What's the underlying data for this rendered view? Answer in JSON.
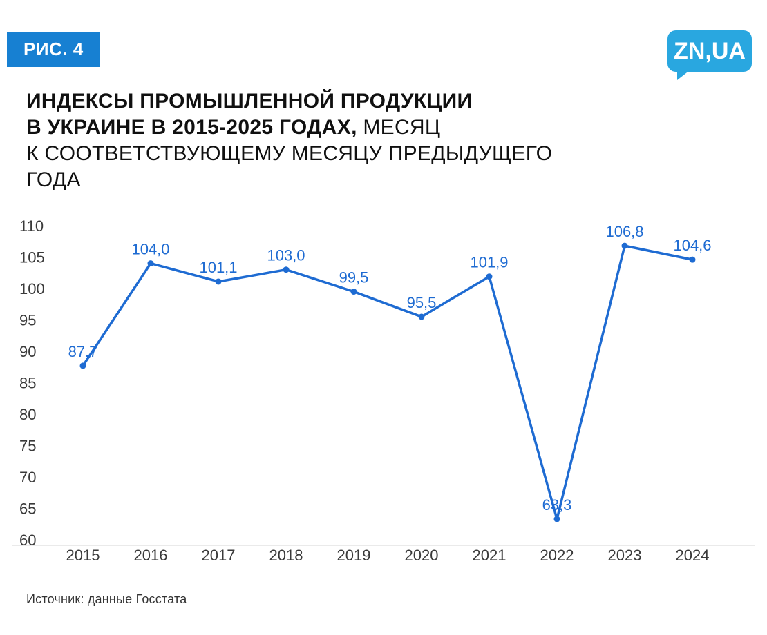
{
  "figure_badge": "РИС. 4",
  "logo_text": "ZN,UA",
  "title": {
    "line1": "ИНДЕКСЫ ПРОМЫШЛЕННОЙ ПРОДУКЦИИ",
    "line2_bold": "В УКРАИНЕ В 2015-2025 ГОДАХ,",
    "line2_regular": " МЕСЯЦ",
    "line3": "К СООТВЕТСТВУЮЩЕМУ МЕСЯЦУ ПРЕДЫДУЩЕГО",
    "line4": "ГОДА"
  },
  "source": "Источник: данные Госстата",
  "colors": {
    "line": "#1e6bd2",
    "point_label": "#1e6bd2",
    "badge_bg": "#1780d2",
    "logo_bg": "#29a7e0",
    "axis_text": "#3a3a3a",
    "axis_line": "#e3e3e3"
  },
  "chart_data": {
    "type": "line",
    "title": "Индексы промышленной продукции в Украине в 2015-2025 годах, месяц к соответствующему месяцу предыдущего года",
    "categories": [
      "2015",
      "2016",
      "2017",
      "2018",
      "2019",
      "2020",
      "2021",
      "2022",
      "2023",
      "2024"
    ],
    "values": [
      87.7,
      104.0,
      101.1,
      103.0,
      99.5,
      95.5,
      101.9,
      63.3,
      106.8,
      104.6
    ],
    "point_labels": [
      "87,7",
      "104,0",
      "101,1",
      "103,0",
      "99,5",
      "95,5",
      "101,9",
      "63,3",
      "106,8",
      "104,6"
    ],
    "xlabel": "",
    "ylabel": "",
    "ylim": [
      60,
      110
    ],
    "yticks": [
      110,
      105,
      100,
      95,
      90,
      85,
      80,
      75,
      70,
      65,
      60
    ],
    "grid": false,
    "legend": false,
    "source_note": "Источник: данные Госстата"
  }
}
